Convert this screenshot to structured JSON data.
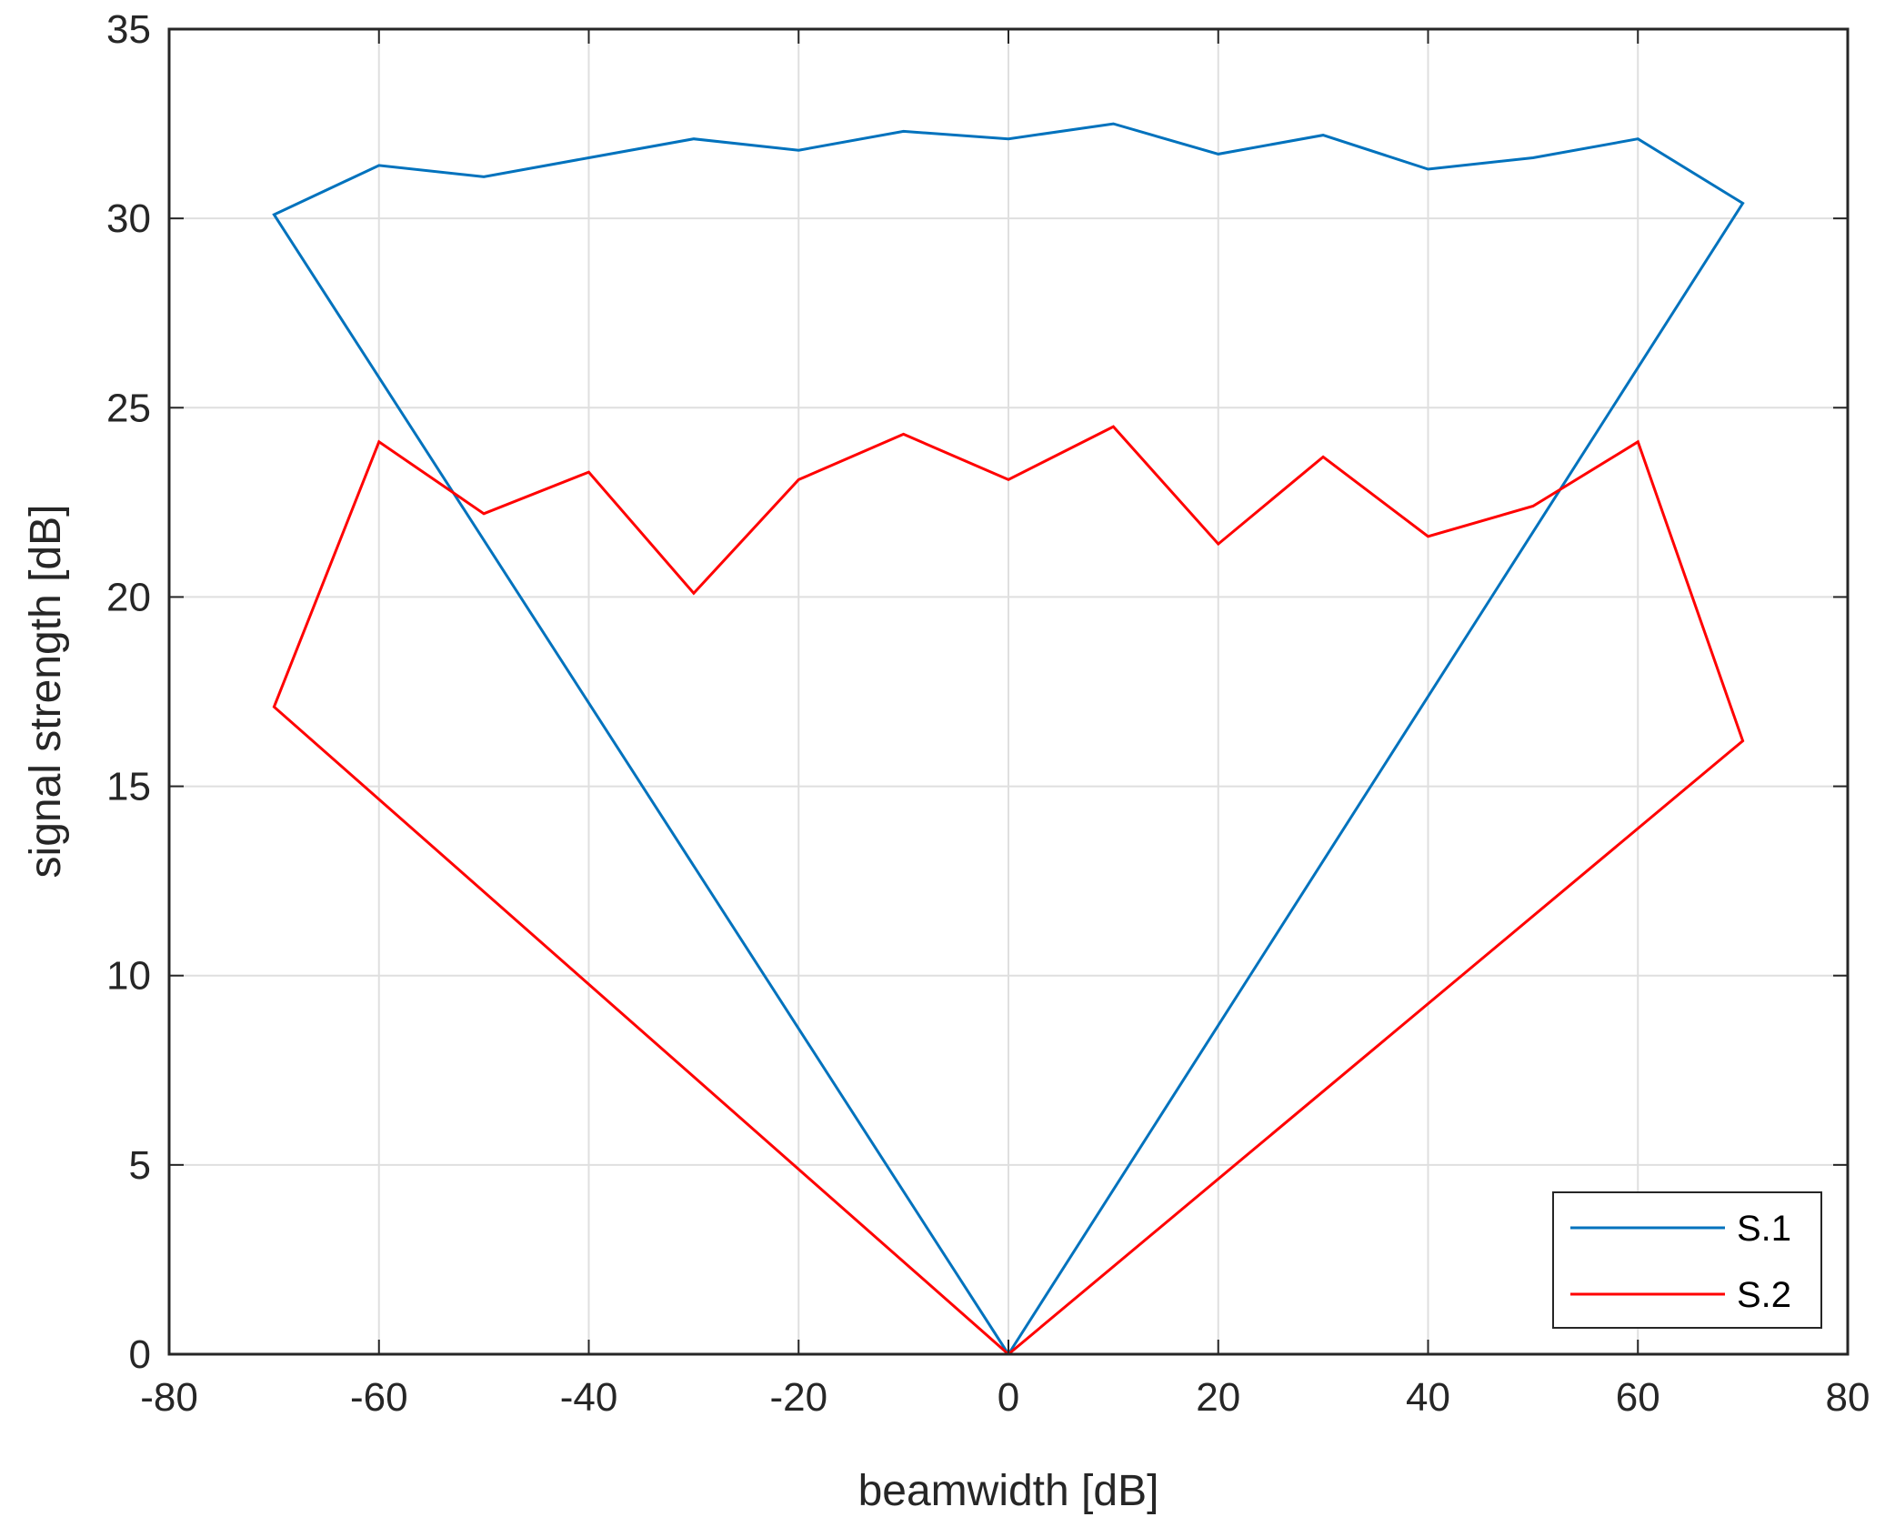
{
  "chart_data": {
    "type": "line",
    "xlabel": "beamwidth [dB]",
    "ylabel": "signal strength [dB]",
    "xlim": [
      -80,
      80
    ],
    "ylim": [
      0,
      35
    ],
    "xticks": [
      -80,
      -60,
      -40,
      -20,
      0,
      20,
      40,
      60,
      80
    ],
    "yticks": [
      0,
      5,
      10,
      15,
      20,
      25,
      30,
      35
    ],
    "grid": true,
    "legend_position": "bottom-right",
    "series": [
      {
        "name": "S.1",
        "color": "#0072BD",
        "points": [
          [
            0,
            0
          ],
          [
            -70,
            30.1
          ],
          [
            -60,
            31.4
          ],
          [
            -50,
            31.1
          ],
          [
            -40,
            31.6
          ],
          [
            -30,
            32.1
          ],
          [
            -20,
            31.8
          ],
          [
            -10,
            32.3
          ],
          [
            0,
            32.1
          ],
          [
            10,
            32.5
          ],
          [
            20,
            31.7
          ],
          [
            30,
            32.2
          ],
          [
            40,
            31.3
          ],
          [
            50,
            31.6
          ],
          [
            60,
            32.1
          ],
          [
            70,
            30.4
          ],
          [
            0,
            0
          ]
        ]
      },
      {
        "name": "S.2",
        "color": "#FF0000",
        "points": [
          [
            0,
            0
          ],
          [
            -70,
            17.1
          ],
          [
            -60,
            24.1
          ],
          [
            -50,
            22.2
          ],
          [
            -40,
            23.3
          ],
          [
            -30,
            20.1
          ],
          [
            -20,
            23.1
          ],
          [
            -10,
            24.3
          ],
          [
            0,
            23.1
          ],
          [
            10,
            24.5
          ],
          [
            20,
            21.4
          ],
          [
            30,
            23.7
          ],
          [
            40,
            21.6
          ],
          [
            50,
            22.4
          ],
          [
            60,
            24.1
          ],
          [
            70,
            16.2
          ],
          [
            0,
            0
          ]
        ]
      }
    ]
  }
}
